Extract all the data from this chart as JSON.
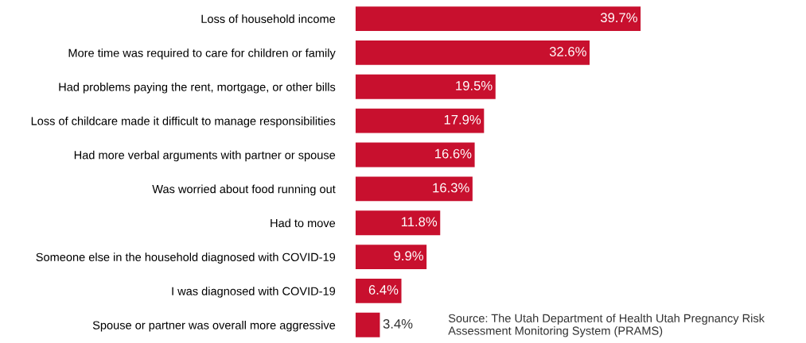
{
  "chart_data": {
    "type": "bar",
    "orientation": "horizontal",
    "categories": [
      "Loss of household income",
      "More time was required to care for children or family",
      "Had problems paying the rent, mortgage, or other bills",
      "Loss of childcare made it difficult to manage responsibilities",
      "Had more verbal arguments with partner or spouse",
      "Was worried about food running out",
      "Had to move",
      "Someone else in the household diagnosed with COVID-19",
      "I was diagnosed with COVID-19",
      "Spouse or partner was overall more aggressive"
    ],
    "values": [
      39.7,
      32.6,
      19.5,
      17.9,
      16.6,
      16.3,
      11.8,
      9.9,
      6.4,
      3.4
    ],
    "value_labels": [
      "39.7%",
      "32.6%",
      "19.5%",
      "17.9%",
      "16.6%",
      "16.3%",
      "11.8%",
      "9.9%",
      "6.4%",
      "3.4%"
    ],
    "color": "#c8102e",
    "annotations": [
      "Source: The Utah Department of Health Utah Pregnancy Risk Assessment Monitoring System (PRAMS)"
    ]
  }
}
